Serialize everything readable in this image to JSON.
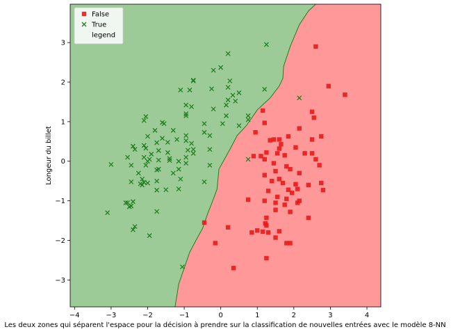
{
  "chart_data": {
    "type": "scatter",
    "title": "",
    "xlabel": "Les deux zones qui séparent l'espace pour la décision à prendre sur la classification de nouvelles entrées avec le modèle 8-NN",
    "ylabel": "Longeur du billet",
    "xlim": [
      -4.12,
      4.38
    ],
    "ylim": [
      -3.68,
      3.97
    ],
    "xticks": [
      -4,
      -3,
      -2,
      -1,
      0,
      1,
      2,
      3,
      4
    ],
    "yticks": [
      -3,
      -2,
      -1,
      0,
      1,
      2,
      3
    ],
    "grid": false,
    "legend_position": "top-left",
    "legend": [
      {
        "label": "False",
        "marker": "square",
        "color": "#e8191a"
      },
      {
        "label": "True",
        "marker": "x",
        "color": "#1f7f1f"
      },
      {
        "label": "legend",
        "marker": "patch",
        "color": "#9ccb98"
      }
    ],
    "regions": {
      "true_color": "#9ccb98",
      "false_color": "#ff9898",
      "boundary_color": "#1f7f1f",
      "boundary": [
        [
          -1.25,
          -3.68
        ],
        [
          -1.15,
          -3.1
        ],
        [
          -1.0,
          -2.7
        ],
        [
          -0.85,
          -2.3
        ],
        [
          -0.68,
          -2.0
        ],
        [
          -0.5,
          -1.7
        ],
        [
          -0.35,
          -1.3
        ],
        [
          -0.22,
          -1.0
        ],
        [
          -0.1,
          -0.7
        ],
        [
          -0.05,
          -0.2
        ],
        [
          0.25,
          0.3
        ],
        [
          0.45,
          0.65
        ],
        [
          0.7,
          0.9
        ],
        [
          1.0,
          1.3
        ],
        [
          1.35,
          1.6
        ],
        [
          1.6,
          1.9
        ],
        [
          1.7,
          2.1
        ],
        [
          1.72,
          2.4
        ],
        [
          1.9,
          2.9
        ],
        [
          2.15,
          3.45
        ],
        [
          2.4,
          3.8
        ],
        [
          2.6,
          3.97
        ]
      ]
    },
    "series": [
      {
        "name": "False",
        "marker": "square",
        "color": "#e8191a",
        "points": [
          [
            2.6,
            2.9
          ],
          [
            2.95,
            1.9
          ],
          [
            3.4,
            1.68
          ],
          [
            2.5,
            1.25
          ],
          [
            2.55,
            1.1
          ],
          [
            1.15,
            1.28
          ],
          [
            0.95,
            0.73
          ],
          [
            1.2,
            0.97
          ],
          [
            1.45,
            0.55
          ],
          [
            1.6,
            0.55
          ],
          [
            1.85,
            0.63
          ],
          [
            2.15,
            0.83
          ],
          [
            2.5,
            0.55
          ],
          [
            2.75,
            0.63
          ],
          [
            1.35,
            0.53
          ],
          [
            1.25,
            0.22
          ],
          [
            1.6,
            0.32
          ],
          [
            1.65,
            0.43
          ],
          [
            2.05,
            0.35
          ],
          [
            2.3,
            0.2
          ],
          [
            2.5,
            0.2
          ],
          [
            2.6,
            0.05
          ],
          [
            0.9,
            0.13
          ],
          [
            1.1,
            0.13
          ],
          [
            1.2,
            0.05
          ],
          [
            1.55,
            0.2
          ],
          [
            1.75,
            0.15
          ],
          [
            1.45,
            -0.05
          ],
          [
            2.7,
            -0.1
          ],
          [
            1.8,
            -0.13
          ],
          [
            1.9,
            -0.2
          ],
          [
            1.5,
            -0.25
          ],
          [
            2.15,
            -0.3
          ],
          [
            2.4,
            -0.6
          ],
          [
            2.75,
            -0.55
          ],
          [
            2.8,
            -0.73
          ],
          [
            1.2,
            -0.35
          ],
          [
            1.4,
            -0.5
          ],
          [
            1.6,
            -0.45
          ],
          [
            1.7,
            -0.55
          ],
          [
            2.05,
            -0.58
          ],
          [
            2.1,
            -0.7
          ],
          [
            1.3,
            -0.75
          ],
          [
            1.85,
            -0.72
          ],
          [
            1.95,
            -0.8
          ],
          [
            1.55,
            -0.9
          ],
          [
            1.8,
            -0.95
          ],
          [
            2.15,
            -1.0
          ],
          [
            2.1,
            -1.05
          ],
          [
            0.75,
            -0.97
          ],
          [
            1.2,
            -1.0
          ],
          [
            1.5,
            -1.05
          ],
          [
            1.75,
            -1.1
          ],
          [
            1.5,
            -1.23
          ],
          [
            1.9,
            -1.28
          ],
          [
            1.25,
            -1.43
          ],
          [
            2.4,
            -1.43
          ],
          [
            0.2,
            -1.67
          ],
          [
            -0.45,
            -1.55
          ],
          [
            1.22,
            -1.57
          ],
          [
            1.25,
            -1.62
          ],
          [
            0.85,
            -1.8
          ],
          [
            1.0,
            -1.75
          ],
          [
            1.15,
            -1.78
          ],
          [
            1.3,
            -1.8
          ],
          [
            1.6,
            -1.77
          ],
          [
            1.5,
            -1.93
          ],
          [
            -0.15,
            -2.07
          ],
          [
            1.8,
            -2.07
          ],
          [
            1.9,
            -2.07
          ],
          [
            1.25,
            -2.45
          ],
          [
            0.35,
            -2.7
          ]
        ]
      },
      {
        "name": "True",
        "marker": "x",
        "color": "#1f7f1f",
        "points": [
          [
            1.25,
            2.95
          ],
          [
            0.2,
            2.72
          ],
          [
            0.0,
            2.37
          ],
          [
            -0.2,
            2.3
          ],
          [
            -0.75,
            2.05
          ],
          [
            -0.75,
            2.03
          ],
          [
            0.25,
            2.03
          ],
          [
            -0.25,
            1.83
          ],
          [
            0.2,
            1.87
          ],
          [
            -1.1,
            1.8
          ],
          [
            -0.85,
            1.8
          ],
          [
            1.2,
            1.82
          ],
          [
            0.5,
            1.73
          ],
          [
            0.33,
            1.67
          ],
          [
            0.2,
            1.55
          ],
          [
            0.4,
            1.52
          ],
          [
            2.15,
            1.6
          ],
          [
            -0.95,
            1.42
          ],
          [
            -0.8,
            1.38
          ],
          [
            -0.95,
            1.2
          ],
          [
            -0.95,
            1.15
          ],
          [
            -0.2,
            1.32
          ],
          [
            0.15,
            1.42
          ],
          [
            0.15,
            1.15
          ],
          [
            0.75,
            1.15
          ],
          [
            0.75,
            1.05
          ],
          [
            -2.05,
            1.13
          ],
          [
            -2.1,
            1.03
          ],
          [
            -1.6,
            0.98
          ],
          [
            -1.55,
            0.95
          ],
          [
            -0.45,
            0.95
          ],
          [
            0.05,
            0.95
          ],
          [
            0.5,
            0.9
          ],
          [
            -1.8,
            0.78
          ],
          [
            -1.3,
            0.78
          ],
          [
            -0.95,
            0.65
          ],
          [
            -0.3,
            0.65
          ],
          [
            -0.45,
            0.73
          ],
          [
            -2.0,
            0.63
          ],
          [
            -1.6,
            0.58
          ],
          [
            -1.45,
            0.48
          ],
          [
            -1.2,
            0.55
          ],
          [
            -0.95,
            0.52
          ],
          [
            -0.8,
            0.45
          ],
          [
            -0.75,
            0.3
          ],
          [
            -0.9,
            0.28
          ],
          [
            -0.75,
            0.2
          ],
          [
            -0.3,
            0.3
          ],
          [
            -2.4,
            0.38
          ],
          [
            -2.35,
            0.3
          ],
          [
            -2.1,
            0.4
          ],
          [
            -2.05,
            0.33
          ],
          [
            -1.75,
            0.47
          ],
          [
            -1.7,
            0.27
          ],
          [
            -1.45,
            0.22
          ],
          [
            -1.9,
            0.18
          ],
          [
            -2.1,
            0.1
          ],
          [
            -1.95,
            0.05
          ],
          [
            -2.55,
            0.1
          ],
          [
            -2.0,
            0.0
          ],
          [
            -1.7,
            0.03
          ],
          [
            -1.4,
            0.07
          ],
          [
            -1.4,
            0.02
          ],
          [
            -1.15,
            0.0
          ],
          [
            -0.95,
            0.1
          ],
          [
            -0.95,
            -0.05
          ],
          [
            -0.3,
            -0.1
          ],
          [
            0.75,
            0.05
          ],
          [
            -3.0,
            -0.08
          ],
          [
            -2.45,
            -0.1
          ],
          [
            -2.05,
            -0.1
          ],
          [
            -1.7,
            -0.2
          ],
          [
            -1.75,
            -0.22
          ],
          [
            -2.25,
            -0.3
          ],
          [
            -1.3,
            -0.3
          ],
          [
            -1.15,
            -0.2
          ],
          [
            -2.15,
            -0.45
          ],
          [
            -2.2,
            -0.57
          ],
          [
            -2.1,
            -0.53
          ],
          [
            -2.0,
            -0.55
          ],
          [
            -2.45,
            -0.52
          ],
          [
            -1.75,
            -0.5
          ],
          [
            -1.1,
            -0.45
          ],
          [
            -0.45,
            -0.52
          ],
          [
            -2.15,
            -0.6
          ],
          [
            -1.75,
            -0.73
          ],
          [
            -1.5,
            -0.72
          ],
          [
            -1.15,
            -0.7
          ],
          [
            -2.55,
            -1.05
          ],
          [
            -2.6,
            -1.05
          ],
          [
            -2.4,
            -1.02
          ],
          [
            -2.45,
            -1.13
          ],
          [
            -2.5,
            -1.15
          ],
          [
            -1.75,
            -1.27
          ],
          [
            -3.1,
            -1.3
          ],
          [
            -2.35,
            -1.65
          ],
          [
            -2.4,
            -1.73
          ],
          [
            -1.95,
            -1.88
          ],
          [
            -1.05,
            -2.67
          ]
        ]
      }
    ]
  }
}
